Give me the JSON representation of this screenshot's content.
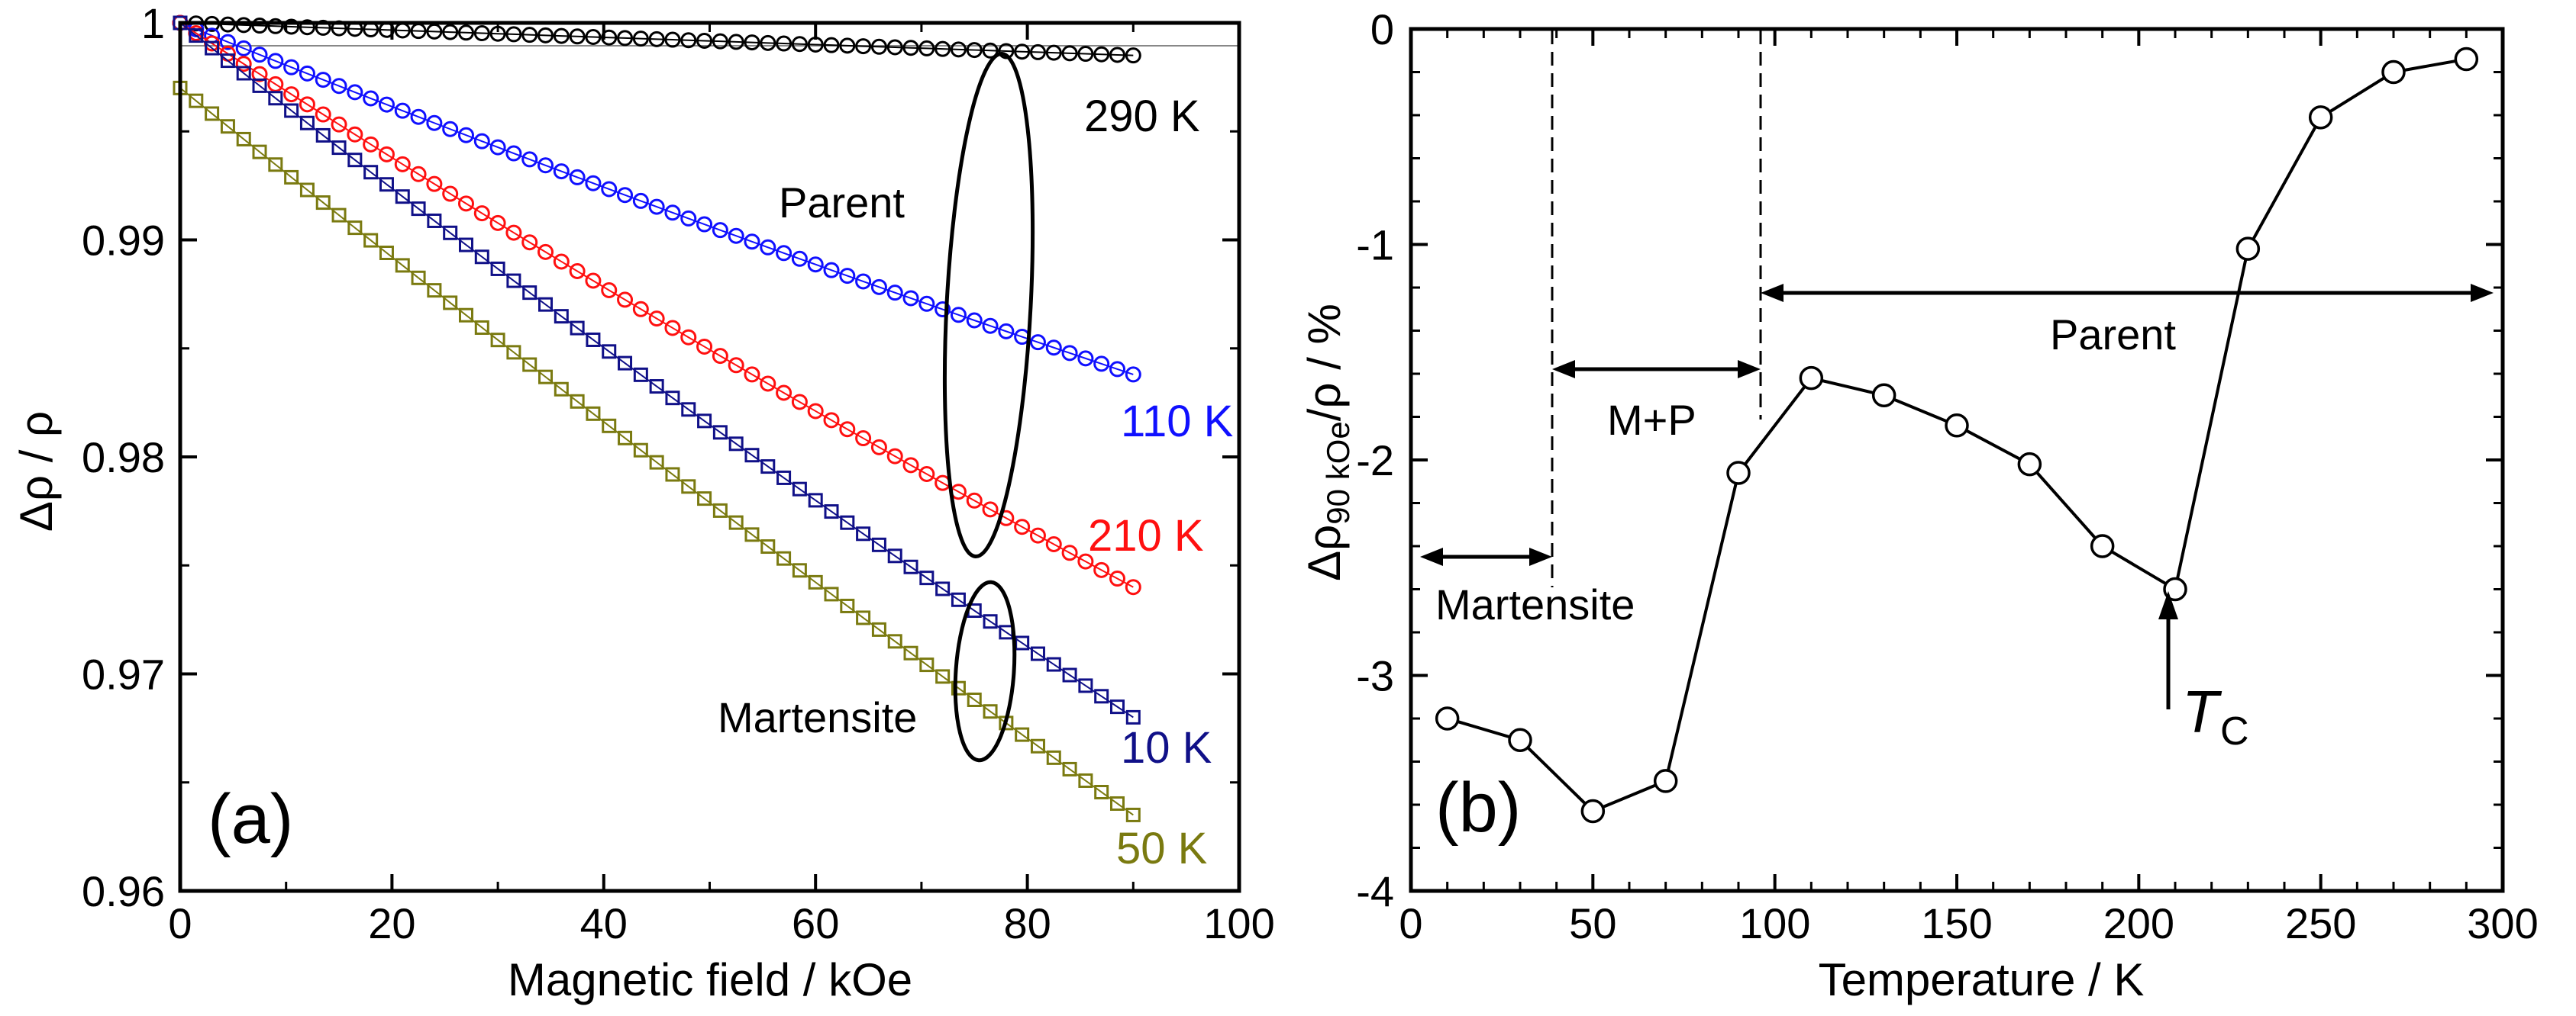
{
  "chart_data": [
    {
      "panel": "(a)",
      "type": "scatter",
      "xlabel": "Magnetic field / kOe",
      "ylabel": "Δρ / ρ",
      "xlim": [
        0,
        100
      ],
      "ylim": [
        0.96,
        1.0
      ],
      "xticks": [
        0,
        20,
        40,
        60,
        80,
        100
      ],
      "xtick_labels": [
        "0",
        "20",
        "40",
        "60",
        "80",
        "100"
      ],
      "yticks": [
        0.96,
        0.97,
        0.98,
        0.99,
        1.0
      ],
      "ytick_labels": [
        "0.96",
        "0.97",
        "0.98",
        "0.99",
        "1"
      ],
      "reference_line": 1.0,
      "series": [
        {
          "name": "290 K",
          "label": "290 K",
          "color": "#000000",
          "marker": "circle",
          "start": 1.0,
          "end": 0.9985,
          "curvature": 0.0
        },
        {
          "name": "110 K",
          "label": "110 K",
          "color": "#1010ff",
          "marker": "circle",
          "start": 1.0,
          "end": 0.9838,
          "curvature": 0.0015
        },
        {
          "name": "210 K",
          "label": "210 K",
          "color": "#ff1010",
          "marker": "circle",
          "start": 1.0,
          "end": 0.974,
          "curvature": 0.0025
        },
        {
          "name": "10 K",
          "label": "10 K",
          "color": "#101088",
          "marker": "square",
          "start": 1.0,
          "end": 0.968,
          "curvature": 0.003
        },
        {
          "name": "50 K",
          "label": "50 K",
          "color": "#7a7a10",
          "marker": "square",
          "start": 0.997,
          "end": 0.9635,
          "curvature": 0.002
        }
      ],
      "annotations": [
        "Parent",
        "Martensite"
      ]
    },
    {
      "panel": "(b)",
      "type": "line",
      "xlabel": "Temperature / K",
      "ylabel_main": "Δρ",
      "ylabel_sub": "90 kOe",
      "ylabel_tail": "/ρ / %",
      "xlim": [
        0,
        300
      ],
      "ylim": [
        -4,
        0
      ],
      "xticks": [
        0,
        50,
        100,
        150,
        200,
        250,
        300
      ],
      "xtick_labels": [
        "0",
        "50",
        "100",
        "150",
        "200",
        "250",
        "300"
      ],
      "yticks": [
        -4,
        -3,
        -2,
        -1,
        0
      ],
      "ytick_labels": [
        "-4",
        "-3",
        "-2",
        "-1",
        "0"
      ],
      "x": [
        10,
        30,
        50,
        70,
        90,
        110,
        130,
        150,
        170,
        190,
        210,
        230,
        250,
        270,
        290
      ],
      "y": [
        -3.2,
        -3.3,
        -3.63,
        -3.49,
        -2.06,
        -1.62,
        -1.7,
        -1.84,
        -2.02,
        -2.4,
        -2.6,
        -1.02,
        -0.41,
        -0.2,
        -0.14
      ],
      "boundaries": [
        40,
        93
      ],
      "regions": [
        {
          "label": "Martensite",
          "from": 0,
          "to": 40
        },
        {
          "label": "M+P",
          "from": 40,
          "to": 93
        },
        {
          "label": "Parent",
          "from": 93,
          "to": 300
        }
      ],
      "tc_label": "T",
      "tc_sub": "C",
      "tc_temperature": 209
    }
  ]
}
